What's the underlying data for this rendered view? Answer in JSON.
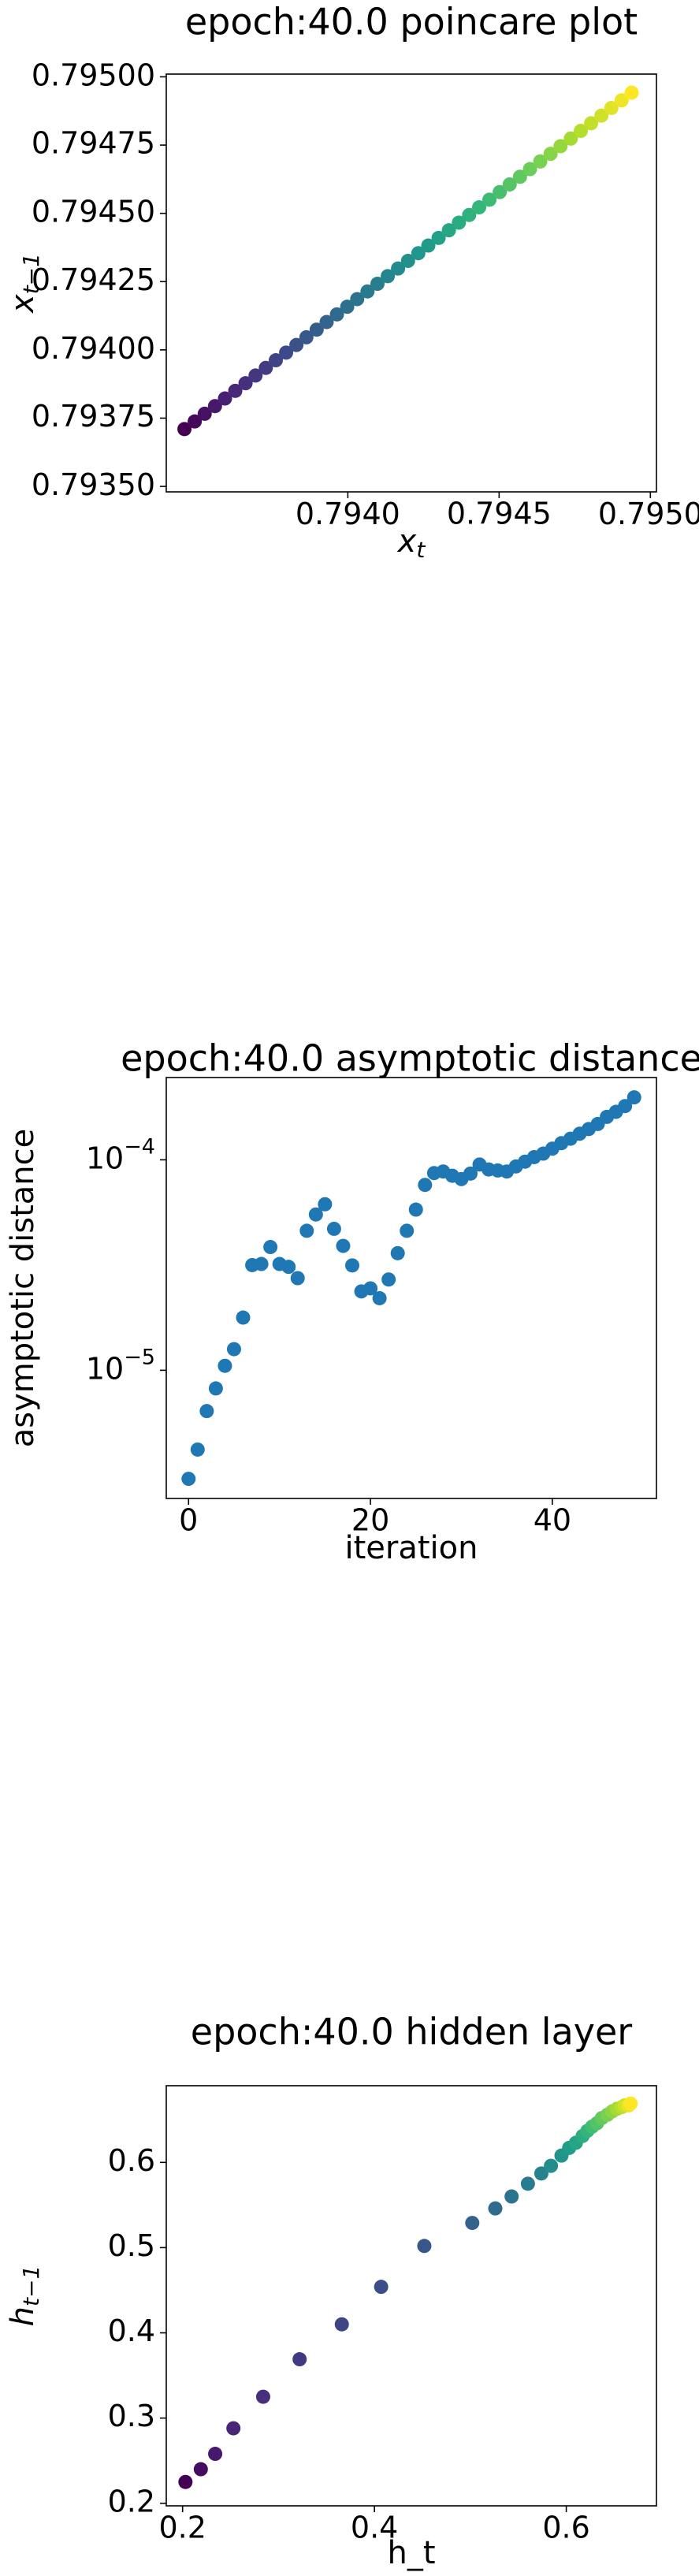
{
  "chart_data": [
    {
      "type": "scatter",
      "title": "epoch:40.0 poincare plot",
      "xlabel": "x",
      "xlabel_sub": "t",
      "ylabel": "x",
      "ylabel_sub": "t−1",
      "colormap": "viridis",
      "x": [
        0.79346,
        0.793494,
        0.793527,
        0.793561,
        0.793594,
        0.793628,
        0.793662,
        0.793695,
        0.793729,
        0.793762,
        0.793796,
        0.79383,
        0.793863,
        0.793897,
        0.79393,
        0.793964,
        0.793998,
        0.794031,
        0.794065,
        0.794098,
        0.794132,
        0.794166,
        0.794199,
        0.794233,
        0.794266,
        0.7943,
        0.794334,
        0.794367,
        0.794401,
        0.794434,
        0.794468,
        0.794502,
        0.794535,
        0.794569,
        0.794602,
        0.794636,
        0.79467,
        0.794703,
        0.794737,
        0.79477,
        0.794804,
        0.794838,
        0.794871,
        0.794905,
        0.794938
      ],
      "y": [
        0.79371,
        0.793738,
        0.793766,
        0.793794,
        0.793822,
        0.79385,
        0.793878,
        0.793906,
        0.793934,
        0.793962,
        0.79399,
        0.794018,
        0.794046,
        0.794074,
        0.794102,
        0.79413,
        0.794158,
        0.794186,
        0.794214,
        0.794242,
        0.79427,
        0.794298,
        0.794326,
        0.794354,
        0.794382,
        0.79441,
        0.794438,
        0.794466,
        0.794494,
        0.794522,
        0.79455,
        0.794578,
        0.794606,
        0.794634,
        0.794662,
        0.79469,
        0.794718,
        0.794746,
        0.794774,
        0.794802,
        0.79483,
        0.794858,
        0.794886,
        0.794914,
        0.794942
      ],
      "xlim": [
        0.7934,
        0.79502
      ],
      "ylim": [
        0.79348,
        0.79501
      ],
      "xticks": [
        {
          "value": 0.794,
          "label": "0.7940"
        },
        0.7945,
        {
          "value": 0.795,
          "label": "0.7950"
        }
      ],
      "yticks": [
        {
          "value": 0.7935,
          "label": "0.79350"
        },
        0.79375,
        {
          "value": 0.794,
          "label": "0.79400"
        },
        0.79425,
        {
          "value": 0.7945,
          "label": "0.79450"
        },
        0.79475,
        {
          "value": 0.795,
          "label": "0.79500"
        }
      ]
    },
    {
      "type": "scatter",
      "title": "epoch:40.0 asymptotic distance",
      "xlabel": "iteration",
      "ylabel": "asymptotic distance",
      "color": "#1f77b4",
      "yscale": "log",
      "x": [
        0,
        1,
        2,
        3,
        4,
        5,
        6,
        7,
        8,
        9,
        10,
        11,
        12,
        13,
        14,
        15,
        16,
        17,
        18,
        19,
        20,
        21,
        22,
        23,
        24,
        25,
        26,
        27,
        28,
        29,
        30,
        31,
        32,
        33,
        34,
        35,
        36,
        37,
        38,
        39,
        40,
        41,
        42,
        43,
        44,
        45,
        46,
        47,
        48,
        49
      ],
      "y": [
        3.05e-06,
        4.2e-06,
        6.4e-06,
        8.2e-06,
        1.05e-05,
        1.26e-05,
        1.78e-05,
        3.16e-05,
        3.2e-05,
        3.85e-05,
        3.2e-05,
        3.1e-05,
        2.74e-05,
        4.6e-05,
        5.5e-05,
        6.15e-05,
        4.7e-05,
        3.9e-05,
        3.15e-05,
        2.37e-05,
        2.45e-05,
        2.2e-05,
        2.7e-05,
        3.6e-05,
        4.6e-05,
        5.8e-05,
        7.6e-05,
        8.65e-05,
        8.8e-05,
        8.4e-05,
        8.1e-05,
        8.6e-05,
        9.5e-05,
        9e-05,
        8.9e-05,
        8.8e-05,
        9.3e-05,
        9.8e-05,
        0.000103,
        0.000107,
        0.000113,
        0.00012,
        0.000126,
        0.000133,
        0.00014,
        0.000148,
        0.00016,
        0.000169,
        0.00018,
        0.000198
      ],
      "xlim": [
        -2.45,
        51.45
      ],
      "ylim": [
        2.46e-06,
        0.000246
      ],
      "xticks": [
        0,
        20,
        40
      ],
      "yticks": [
        {
          "value": 1e-05,
          "label": "10",
          "exponent": "−5"
        },
        {
          "value": 0.0001,
          "label": "10",
          "exponent": "−4"
        }
      ]
    },
    {
      "type": "scatter",
      "title": "epoch:40.0 hidden layer",
      "xlabel": "h_t",
      "ylabel": "h",
      "ylabel_sub": "t−1",
      "colormap": "viridis",
      "x": [
        0.203,
        0.219,
        0.234,
        0.253,
        0.284,
        0.322,
        0.366,
        0.407,
        0.452,
        0.502,
        0.526,
        0.543,
        0.56,
        0.574,
        0.584,
        0.595,
        0.603,
        0.61,
        0.617,
        0.622,
        0.627,
        0.632,
        0.637,
        0.643,
        0.648,
        0.653,
        0.658,
        0.661,
        0.665,
        0.667
      ],
      "y": [
        0.225,
        0.24,
        0.258,
        0.288,
        0.325,
        0.369,
        0.41,
        0.454,
        0.502,
        0.529,
        0.546,
        0.56,
        0.575,
        0.587,
        0.596,
        0.608,
        0.617,
        0.623,
        0.631,
        0.637,
        0.642,
        0.646,
        0.652,
        0.656,
        0.66,
        0.663,
        0.665,
        0.667,
        0.667,
        0.669
      ],
      "xlim": [
        0.183,
        0.694
      ],
      "ylim": [
        0.197,
        0.69
      ],
      "xticks": [
        0.2,
        0.4,
        0.6
      ],
      "yticks": [
        0.2,
        0.3,
        0.4,
        0.5,
        0.6
      ]
    }
  ]
}
